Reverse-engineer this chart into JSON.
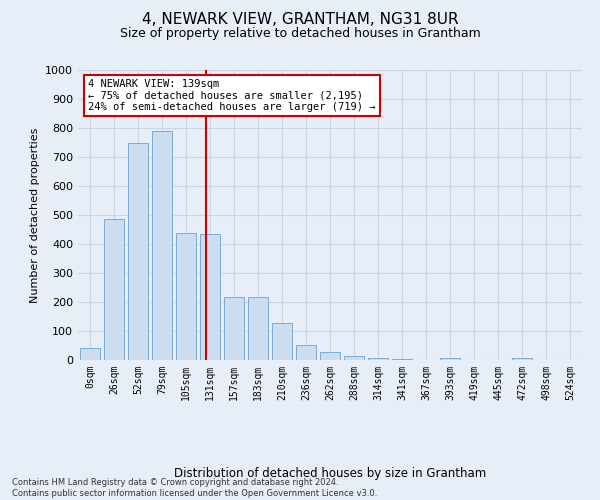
{
  "title": "4, NEWARK VIEW, GRANTHAM, NG31 8UR",
  "subtitle": "Size of property relative to detached houses in Grantham",
  "xlabel": "Distribution of detached houses by size in Grantham",
  "ylabel": "Number of detached properties",
  "footnote": "Contains HM Land Registry data © Crown copyright and database right 2024.\nContains public sector information licensed under the Open Government Licence v3.0.",
  "bar_labels": [
    "0sqm",
    "26sqm",
    "52sqm",
    "79sqm",
    "105sqm",
    "131sqm",
    "157sqm",
    "183sqm",
    "210sqm",
    "236sqm",
    "262sqm",
    "288sqm",
    "314sqm",
    "341sqm",
    "367sqm",
    "393sqm",
    "419sqm",
    "445sqm",
    "472sqm",
    "498sqm",
    "524sqm"
  ],
  "bar_heights": [
    40,
    485,
    748,
    790,
    438,
    435,
    218,
    218,
    128,
    52,
    27,
    13,
    8,
    5,
    0,
    6,
    0,
    0,
    8,
    0,
    0
  ],
  "bar_color": "#ccddf0",
  "bar_edge_color": "#7aacd6",
  "vline_color": "#cc0000",
  "annotation_text": "4 NEWARK VIEW: 139sqm\n← 75% of detached houses are smaller (2,195)\n24% of semi-detached houses are larger (719) →",
  "annotation_box_color": "white",
  "annotation_box_edge": "#cc0000",
  "ylim": [
    0,
    1000
  ],
  "yticks": [
    0,
    100,
    200,
    300,
    400,
    500,
    600,
    700,
    800,
    900,
    1000
  ],
  "grid_color": "#c8d4e8",
  "bg_color": "#e8eef8",
  "title_fontsize": 11,
  "subtitle_fontsize": 9,
  "footnote_fontsize": 6
}
